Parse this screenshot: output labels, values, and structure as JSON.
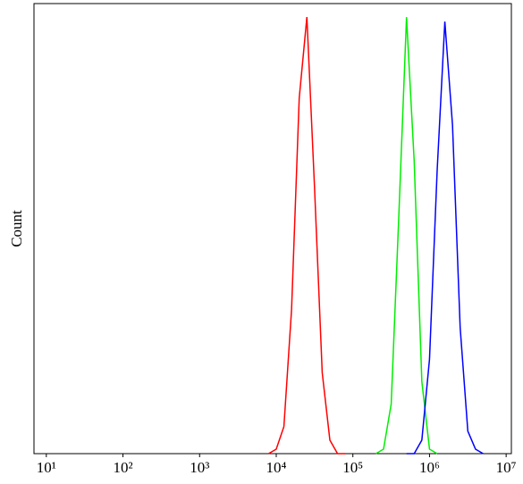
{
  "chart_data": {
    "type": "line",
    "xscale": "log",
    "ylabel": "Count",
    "x": [
      3981,
      5012,
      6310,
      7943,
      10000,
      12589,
      15849,
      19953,
      25119,
      31623,
      39811,
      50119,
      63096,
      79433,
      100000,
      125893,
      158489,
      199526,
      251189,
      316228,
      398107,
      501187,
      630957,
      794328,
      1000000,
      1258925,
      1584893,
      1995262,
      2511886,
      3162278,
      3981072,
      5011872,
      6309573
    ],
    "series": [
      {
        "color": "#ff0000",
        "values": [
          null,
          null,
          null,
          0,
          1,
          6,
          32,
          79,
          97,
          59,
          18,
          3,
          0,
          0,
          null,
          null,
          null,
          null,
          null,
          null,
          null,
          null,
          null,
          null,
          null,
          null,
          null,
          null,
          null,
          null,
          null,
          null,
          null
        ]
      },
      {
        "color": "#00ee00",
        "values": [
          null,
          null,
          null,
          null,
          null,
          null,
          null,
          null,
          null,
          null,
          null,
          null,
          null,
          null,
          null,
          null,
          null,
          0,
          1,
          11,
          53,
          97,
          65,
          16,
          1,
          0,
          null,
          null,
          null,
          null,
          null,
          null,
          null
        ]
      },
      {
        "color": "#0000ff",
        "values": [
          null,
          null,
          null,
          null,
          null,
          null,
          null,
          null,
          null,
          null,
          null,
          null,
          null,
          null,
          null,
          null,
          null,
          null,
          null,
          null,
          null,
          0,
          0,
          3,
          21,
          63,
          96,
          73,
          28,
          5,
          1,
          0,
          null
        ]
      }
    ],
    "xlim": [
      6.9,
      11700000
    ],
    "ylim": [
      0,
      100
    ],
    "xticks": [
      {
        "value": 10,
        "label": "10¹"
      },
      {
        "value": 100,
        "label": "10²"
      },
      {
        "value": 1000,
        "label": "10³"
      },
      {
        "value": 10000,
        "label": "10⁴"
      },
      {
        "value": 100000,
        "label": "10⁵"
      },
      {
        "value": 1000000,
        "label": "10⁶"
      },
      {
        "value": 10000000,
        "label": "10⁷"
      }
    ]
  }
}
